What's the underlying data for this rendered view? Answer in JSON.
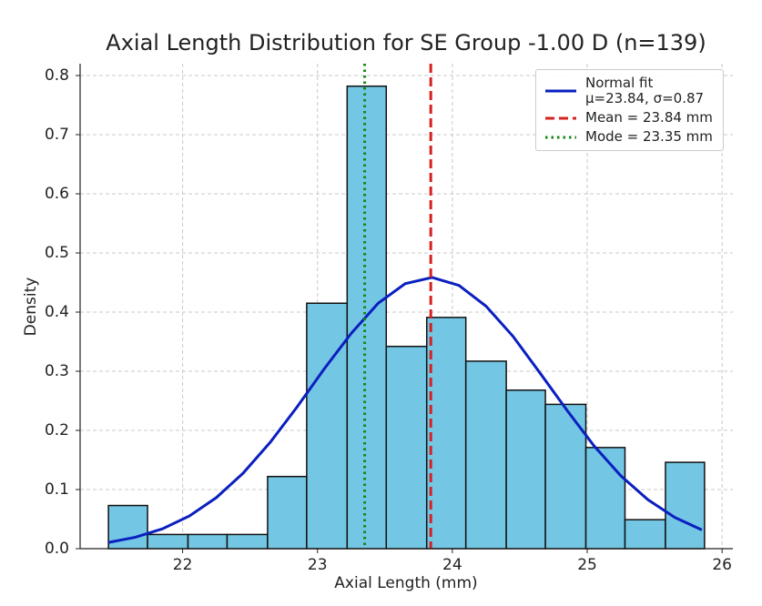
{
  "chart_data": {
    "type": "histogram",
    "title": "Axial Length Distribution for SE Group -1.00 D (n=139)",
    "xlabel": "Axial Length (mm)",
    "ylabel": "Density",
    "bins": [
      21.45,
      21.74,
      22.04,
      22.33,
      22.63,
      22.92,
      23.22,
      23.51,
      23.81,
      24.1,
      24.4,
      24.69,
      24.99,
      25.28,
      25.58,
      25.87
    ],
    "values": [
      0.073,
      0.024,
      0.024,
      0.024,
      0.122,
      0.415,
      0.782,
      0.342,
      0.391,
      0.317,
      0.268,
      0.244,
      0.171,
      0.049,
      0.146
    ],
    "color": "#73c6e4",
    "xlim": [
      21.24,
      26.08
    ],
    "ylim": [
      0,
      0.82
    ],
    "xticks": [
      22,
      23,
      24,
      25,
      26
    ],
    "yticks": [
      {
        "value": 0,
        "label": "0.0"
      },
      0.1,
      0.2,
      0.3,
      0.4,
      0.5,
      0.6,
      0.7,
      0.8
    ],
    "grid": true,
    "legend": "upper right",
    "overlays": [
      {
        "type": "line",
        "name": "Normal fit\nμ=23.84, σ=0.87",
        "color": "#0a1fbf",
        "x": [
          21.45,
          21.65,
          21.85,
          22.05,
          22.25,
          22.45,
          22.65,
          22.85,
          23.05,
          23.25,
          23.45,
          23.65,
          23.85,
          24.05,
          24.25,
          24.45,
          24.65,
          24.85,
          25.05,
          25.25,
          25.45,
          25.65,
          25.85
        ],
        "values": [
          0.0105,
          0.0193,
          0.0335,
          0.0553,
          0.0863,
          0.128,
          0.18,
          0.24,
          0.304,
          0.364,
          0.415,
          0.448,
          0.4586,
          0.445,
          0.41,
          0.359,
          0.297,
          0.234,
          0.174,
          0.123,
          0.0828,
          0.0527,
          0.0318
        ]
      },
      {
        "type": "vline",
        "name": "Mean = 23.84 mm",
        "color": "#d62020",
        "style": "dashed",
        "value": 23.84
      },
      {
        "type": "vline",
        "name": "Mode = 23.35 mm",
        "color": "#138a13",
        "style": "dotted",
        "value": 23.35
      }
    ]
  }
}
